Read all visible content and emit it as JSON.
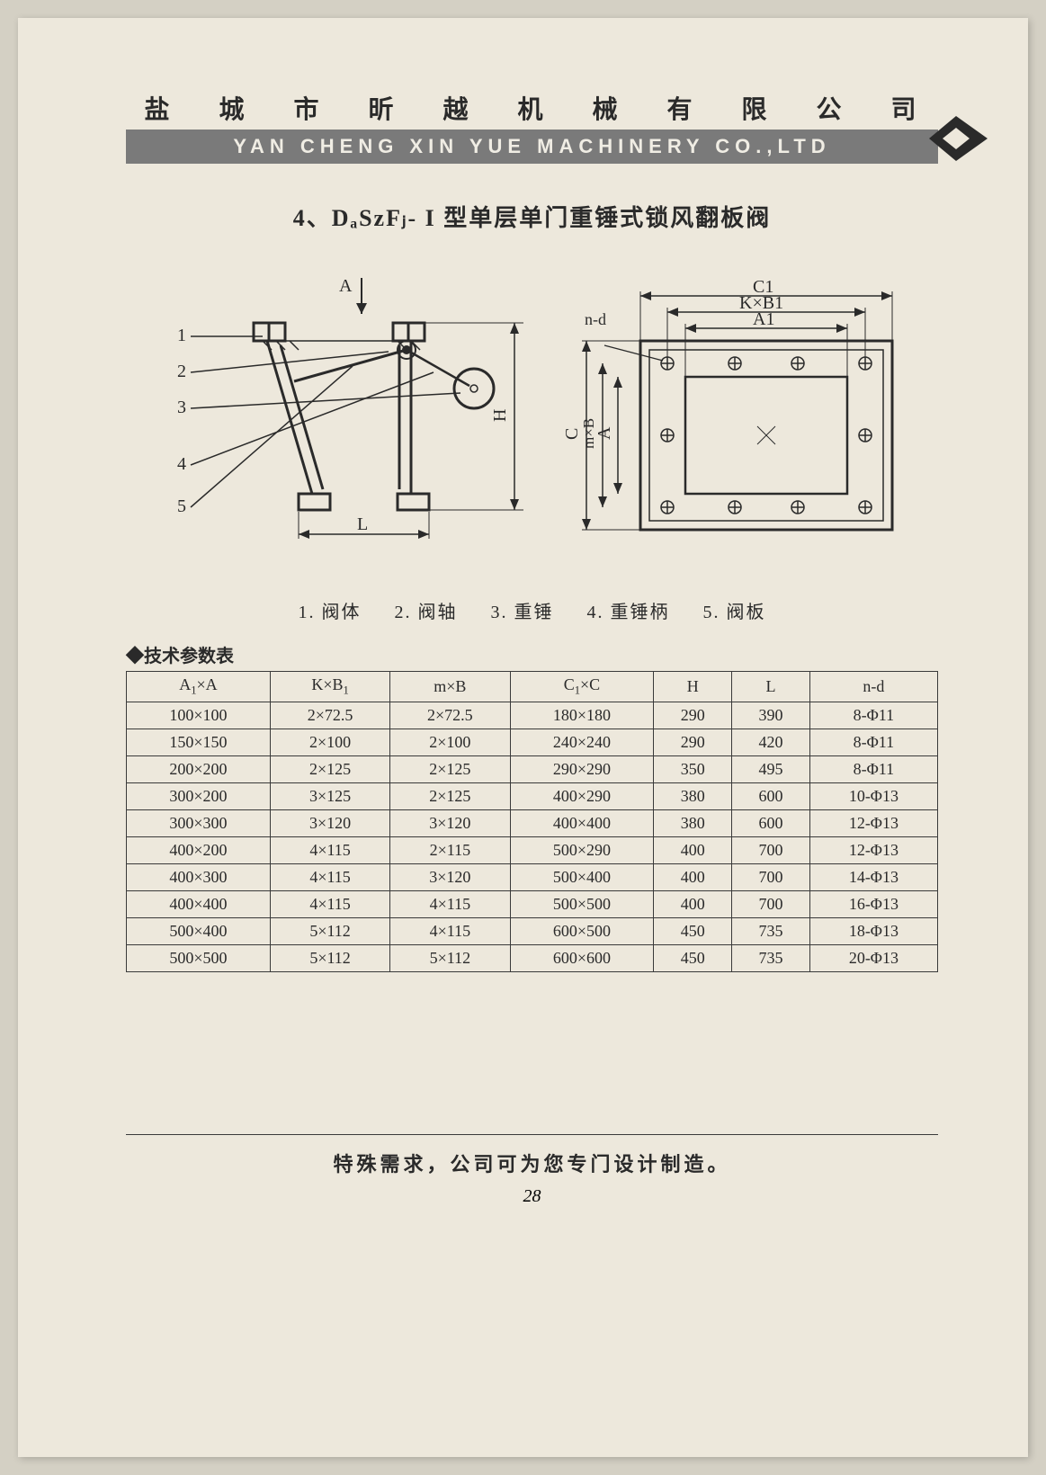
{
  "header": {
    "cn": "盐 城 市 昕 越 机 械 有 限 公 司",
    "en": "YAN CHENG XIN YUE MACHINERY CO.,LTD"
  },
  "title": {
    "prefix": "4、",
    "model": "DₐSᴢFⱼ- I ",
    "text": "型单层单门重锤式锁风翻板阀"
  },
  "legend": {
    "items": [
      "1. 阀体",
      "2. 阀轴",
      "3. 重锤",
      "4. 重锤柄",
      "5. 阀板"
    ]
  },
  "table": {
    "title": "◆技术参数表",
    "columns": [
      "A₁×A",
      "K×B₁",
      "m×B",
      "C₁×C",
      "H",
      "L",
      "n-d"
    ],
    "rows": [
      [
        "100×100",
        "2×72.5",
        "2×72.5",
        "180×180",
        "290",
        "390",
        "8-Φ11"
      ],
      [
        "150×150",
        "2×100",
        "2×100",
        "240×240",
        "290",
        "420",
        "8-Φ11"
      ],
      [
        "200×200",
        "2×125",
        "2×125",
        "290×290",
        "350",
        "495",
        "8-Φ11"
      ],
      [
        "300×200",
        "3×125",
        "2×125",
        "400×290",
        "380",
        "600",
        "10-Φ13"
      ],
      [
        "300×300",
        "3×120",
        "3×120",
        "400×400",
        "380",
        "600",
        "12-Φ13"
      ],
      [
        "400×200",
        "4×115",
        "2×115",
        "500×290",
        "400",
        "700",
        "12-Φ13"
      ],
      [
        "400×300",
        "4×115",
        "3×120",
        "500×400",
        "400",
        "700",
        "14-Φ13"
      ],
      [
        "400×400",
        "4×115",
        "4×115",
        "500×500",
        "400",
        "700",
        "16-Φ13"
      ],
      [
        "500×400",
        "5×112",
        "4×115",
        "600×500",
        "450",
        "735",
        "18-Φ13"
      ],
      [
        "500×500",
        "5×112",
        "5×112",
        "600×600",
        "450",
        "735",
        "20-Φ13"
      ]
    ]
  },
  "diagram": {
    "labels": {
      "A": "A",
      "H": "H",
      "L": "L",
      "C1": "C1",
      "KxB1": "K×B1",
      "A1": "A1",
      "nd": "n-d",
      "C": "C",
      "mxB": "m×B",
      "Av": "A"
    },
    "part_numbers": [
      "1",
      "2",
      "3",
      "4",
      "5"
    ]
  },
  "footer": {
    "text": "特殊需求，公司可为您专门设计制造。",
    "page": "28"
  },
  "colors": {
    "page_bg": "#ede8dc",
    "header_bar": "#7a7a7a",
    "text": "#2a2a2a",
    "border": "#3a3a3a"
  }
}
